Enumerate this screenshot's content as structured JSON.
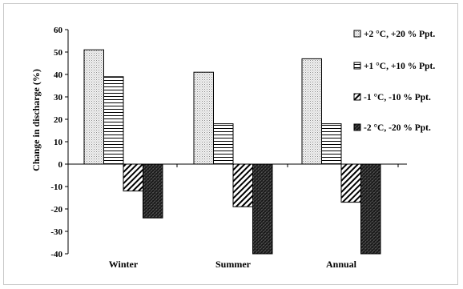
{
  "chart_data": {
    "type": "bar",
    "title": "",
    "xlabel": "",
    "ylabel": "Change in discharge  (%)",
    "ylim": [
      -40,
      60
    ],
    "yticks": [
      60,
      50,
      40,
      30,
      20,
      10,
      0,
      -10,
      -20,
      -30,
      -40
    ],
    "categories": [
      "Winter",
      "Summer",
      "Annual"
    ],
    "series": [
      {
        "name": "+2 °C, +20 % Ppt.",
        "pattern": "dots",
        "values": [
          51,
          41,
          47
        ]
      },
      {
        "name": "+1 °C, +10 % Ppt.",
        "pattern": "hlines",
        "values": [
          39,
          18,
          18
        ]
      },
      {
        "name": "-1 °C, -10 % Ppt.",
        "pattern": "diagonal",
        "values": [
          -12,
          -19,
          -17
        ]
      },
      {
        "name": "-2 °C, -20 % Ppt.",
        "pattern": "dense-cross",
        "values": [
          -24,
          -40,
          -40
        ]
      }
    ],
    "grid": false,
    "legend_position": "top-right"
  }
}
